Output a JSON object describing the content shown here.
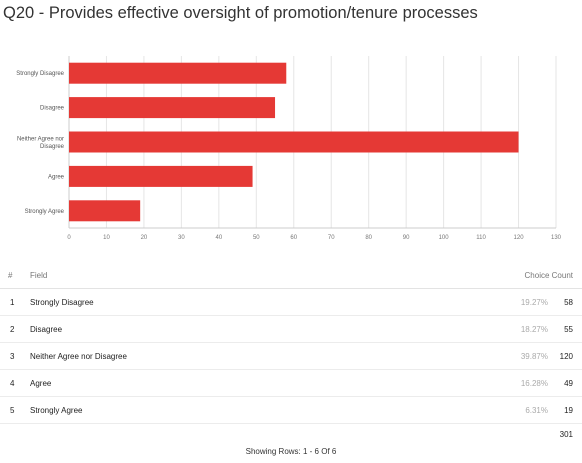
{
  "title": "Q20 - Provides effective oversight of promotion/tenure processes",
  "colors": {
    "bar": "#e53935",
    "grid": "#e6e6e6",
    "axis": "#cccccc",
    "label": "#555555",
    "tick": "#777777"
  },
  "chart_data": {
    "type": "bar",
    "orientation": "horizontal",
    "categories": [
      "Strongly Disagree",
      "Disagree",
      "Neither Agree nor Disagree",
      "Agree",
      "Strongly Agree"
    ],
    "values": [
      58,
      55,
      120,
      49,
      19
    ],
    "xlim": [
      0,
      130
    ],
    "xticks": [
      0,
      10,
      20,
      30,
      40,
      50,
      60,
      70,
      80,
      90,
      100,
      110,
      120,
      130
    ],
    "grid": true,
    "title": "Q20 - Provides effective oversight of promotion/tenure processes",
    "xlabel": "",
    "ylabel": ""
  },
  "table": {
    "headers": {
      "num": "#",
      "field": "Field",
      "count": "Choice Count"
    },
    "rows": [
      {
        "num": "1",
        "field": "Strongly Disagree",
        "pct": "19.27%",
        "count": "58"
      },
      {
        "num": "2",
        "field": "Disagree",
        "pct": "18.27%",
        "count": "55"
      },
      {
        "num": "3",
        "field": "Neither Agree nor Disagree",
        "pct": "39.87%",
        "count": "120"
      },
      {
        "num": "4",
        "field": "Agree",
        "pct": "16.28%",
        "count": "49"
      },
      {
        "num": "5",
        "field": "Strongly Agree",
        "pct": "6.31%",
        "count": "19"
      }
    ],
    "total": "301"
  },
  "footer": "Showing Rows: 1 - 6 Of 6"
}
